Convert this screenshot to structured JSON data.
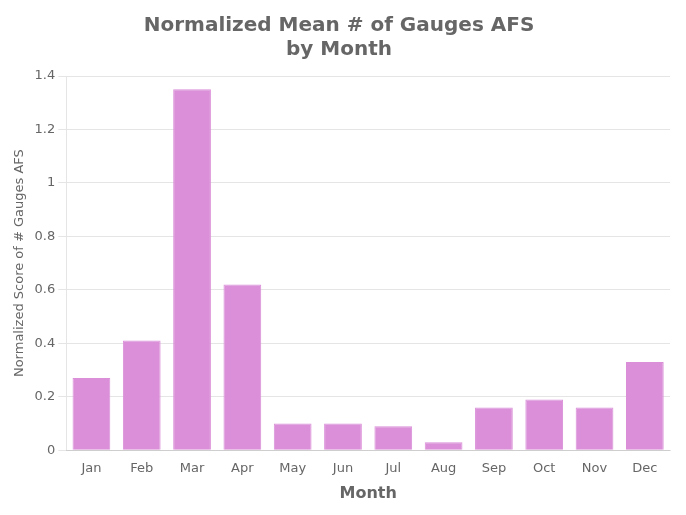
{
  "chart_data": {
    "type": "bar",
    "title": "Normalized Mean # of Gauges AFS\nby Month",
    "xlabel": "Month",
    "ylabel": "Normalized Score of # Gauges AFS",
    "categories": [
      "Jan",
      "Feb",
      "Mar",
      "Apr",
      "May",
      "Jun",
      "Jul",
      "Aug",
      "Sep",
      "Oct",
      "Nov",
      "Dec"
    ],
    "values": [
      0.27,
      0.41,
      1.35,
      0.62,
      0.1,
      0.1,
      0.09,
      0.03,
      0.16,
      0.19,
      0.16,
      0.33
    ],
    "color": "#DA8FD8",
    "ylim": [
      0,
      1.4
    ],
    "yticks": [
      0,
      0.2,
      0.4,
      0.6,
      0.8,
      1.0,
      1.2,
      1.4
    ],
    "grid": true
  }
}
